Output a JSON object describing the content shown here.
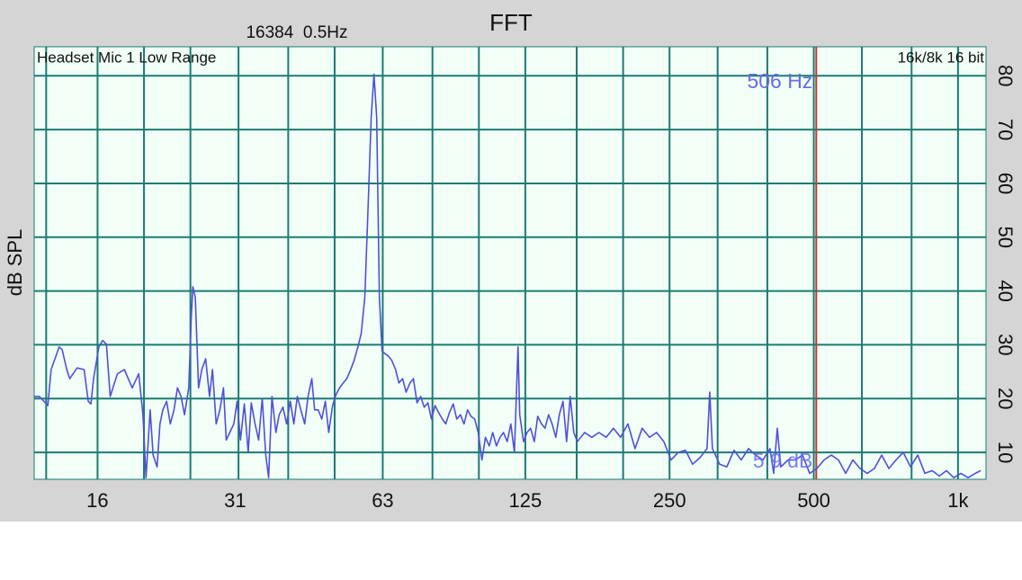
{
  "chart_data": {
    "type": "line",
    "title": "FFT",
    "subtitle": "16384  0.5Hz",
    "annotations": {
      "left": "Headset Mic 1 Low Range",
      "right": "16k/8k 16 bit"
    },
    "y_label": "dB SPL",
    "x_scale": "log",
    "grid": true,
    "grid_color": "#1b7c72",
    "xlim": [
      11.8,
      1144
    ],
    "xticks": [
      16,
      31,
      63,
      125,
      250,
      500,
      {
        "value": 1000,
        "label": "1k"
      }
    ],
    "xgrid": [
      12.5,
      16,
      20,
      25,
      31.5,
      40,
      50,
      63,
      80,
      100,
      125,
      160,
      200,
      250,
      315,
      400,
      500,
      630,
      800,
      1000
    ],
    "ylim": [
      5,
      85.4
    ],
    "yticks": [
      10,
      20,
      30,
      40,
      50,
      60,
      70,
      80
    ],
    "cursor": {
      "x": 506,
      "label": "506 Hz",
      "level_label": "5.9 dB",
      "color": "#c0392b"
    },
    "x": [
      11.8,
      12.1,
      12.6,
      12.8,
      13.1,
      13.3,
      13.5,
      13.8,
      14.0,
      14.5,
      15.0,
      15.3,
      15.5,
      15.7,
      16.1,
      16.4,
      16.7,
      17.0,
      17.6,
      18.2,
      18.9,
      19.5,
      19.9,
      20.2,
      20.6,
      20.9,
      21.3,
      21.6,
      21.9,
      22.3,
      22.7,
      23.1,
      23.5,
      23.9,
      24.3,
      24.8,
      25.1,
      25.3,
      25.6,
      26.0,
      26.4,
      26.9,
      27.4,
      27.8,
      28.3,
      28.8,
      29.3,
      29.7,
      30.2,
      30.8,
      31.3,
      31.8,
      32.4,
      33.0,
      33.5,
      34.1,
      34.7,
      35.3,
      35.9,
      36.4,
      37.0,
      37.7,
      38.3,
      39.0,
      39.7,
      40.4,
      41.1,
      41.8,
      42.5,
      43.3,
      44.0,
      44.8,
      45.4,
      46.2,
      47.0,
      47.8,
      48.6,
      49.5,
      50.3,
      51.2,
      52.1,
      53.0,
      54.0,
      54.9,
      55.9,
      56.8,
      57.8,
      58.8,
      59.6,
      60.4,
      61.2,
      62.0,
      62.8,
      63.6,
      64.7,
      65.8,
      67.0,
      68.1,
      69.3,
      70.5,
      71.8,
      73.0,
      74.3,
      75.6,
      76.9,
      78.3,
      79.6,
      81.0,
      82.4,
      83.9,
      85.3,
      86.8,
      88.4,
      89.9,
      91.5,
      93.1,
      94.7,
      96.3,
      98.0,
      99.7,
      101.5,
      103.2,
      105.1,
      106.9,
      108.8,
      110.7,
      112.6,
      114.6,
      116.6,
      118.6,
      120.7,
      121.7,
      123.9,
      126.0,
      128.2,
      130.5,
      132.7,
      135.1,
      137.4,
      139.8,
      142.2,
      144.7,
      147.2,
      149.8,
      152.4,
      155.1,
      157.8,
      160.5,
      166.2,
      172.1,
      178.1,
      184.4,
      190.9,
      197.6,
      204.6,
      211.8,
      219.2,
      227.0,
      234.9,
      243.2,
      251.8,
      260.7,
      269.8,
      279.3,
      289.2,
      299.4,
      303.3,
      307.2,
      318.0,
      329.2,
      340.8,
      352.8,
      365.3,
      378.1,
      391.5,
      405.2,
      412.3,
      419.5,
      426.8,
      441.9,
      457.4,
      473.5,
      490.2,
      507.5,
      525.4,
      543.8,
      563.0,
      582.8,
      603.3,
      624.6,
      646.6,
      669.3,
      692.9,
      717.3,
      742.6,
      768.7,
      795.8,
      823.8,
      852.8,
      882.8,
      913.9,
      946.1,
      979.4,
      1013.9,
      1049.6,
      1086.5,
      1115.1
    ],
    "series": [
      {
        "color": "#5050d8",
        "values": [
          20.4,
          20.4,
          18.7,
          25.4,
          27.9,
          29.6,
          29.1,
          25.4,
          23.7,
          25.7,
          25.4,
          19.5,
          19.0,
          23.7,
          29.6,
          30.8,
          30.1,
          20.4,
          24.6,
          25.4,
          22.0,
          24.6,
          17.0,
          5.3,
          17.9,
          9.5,
          7.3,
          15.3,
          17.9,
          19.5,
          15.3,
          17.9,
          22.0,
          20.4,
          17.0,
          22.0,
          35.1,
          40.8,
          38.8,
          22.0,
          25.4,
          27.4,
          20.4,
          25.4,
          15.3,
          17.9,
          22.0,
          12.3,
          13.7,
          15.3,
          19.5,
          12.3,
          19.0,
          10.0,
          19.2,
          15.3,
          12.3,
          20.0,
          9.5,
          5.3,
          20.4,
          13.7,
          17.0,
          18.4,
          15.3,
          19.5,
          15.3,
          20.4,
          17.9,
          15.3,
          20.4,
          23.7,
          17.9,
          17.9,
          16.2,
          19.5,
          13.7,
          18.7,
          20.7,
          22.0,
          22.9,
          23.7,
          25.4,
          27.1,
          29.6,
          32.1,
          38.8,
          57.2,
          72.3,
          80.3,
          72.3,
          38.8,
          28.8,
          28.4,
          27.9,
          27.1,
          25.4,
          22.9,
          23.7,
          21.2,
          22.9,
          23.7,
          19.2,
          20.4,
          18.4,
          19.2,
          16.2,
          18.7,
          17.4,
          16.2,
          15.3,
          17.4,
          19.0,
          16.2,
          17.0,
          15.3,
          17.9,
          16.7,
          16.2,
          13.7,
          8.6,
          12.8,
          11.2,
          13.7,
          11.2,
          12.8,
          13.7,
          12.0,
          15.3,
          10.0,
          29.6,
          17.0,
          12.0,
          13.7,
          14.5,
          12.0,
          16.7,
          15.3,
          14.5,
          17.0,
          15.3,
          12.8,
          17.0,
          19.5,
          12.0,
          20.4,
          13.7,
          12.0,
          13.7,
          12.8,
          13.7,
          12.8,
          14.5,
          12.8,
          15.3,
          10.7,
          14.5,
          12.8,
          13.7,
          12.0,
          8.6,
          10.0,
          10.4,
          7.8,
          9.0,
          10.7,
          21.2,
          10.7,
          7.8,
          7.3,
          10.4,
          8.6,
          10.7,
          9.5,
          8.6,
          10.7,
          6.1,
          14.5,
          7.3,
          8.6,
          8.6,
          9.5,
          6.1,
          7.0,
          8.6,
          9.5,
          8.6,
          6.1,
          8.6,
          7.0,
          6.1,
          7.0,
          9.5,
          7.0,
          8.6,
          10.0,
          7.3,
          9.5,
          6.1,
          6.6,
          5.6,
          6.6,
          5.3,
          6.1,
          5.3,
          6.1,
          6.6
        ]
      }
    ]
  }
}
